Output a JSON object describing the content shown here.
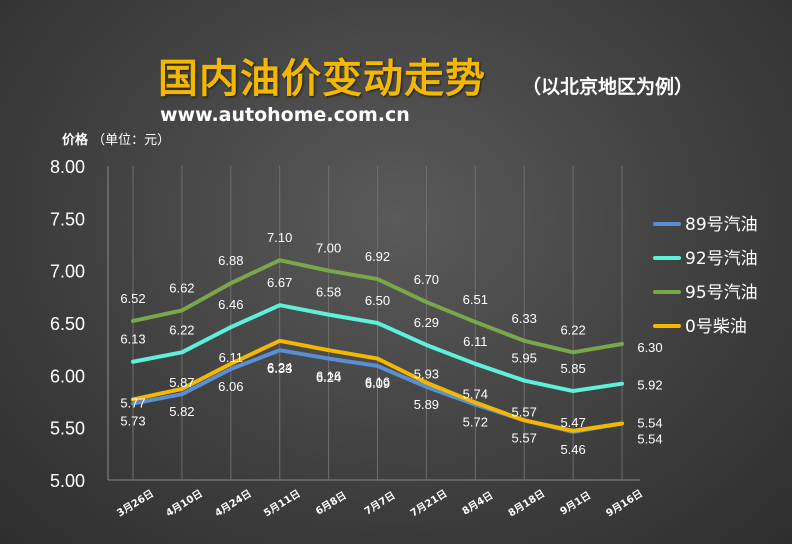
{
  "header": {
    "title": "国内油价变动走势",
    "subtitle": "（以北京地区为例）",
    "url": "www.autohome.com.cn",
    "y_unit_label": "价格",
    "y_unit_note": "（单位：元）"
  },
  "chart_data": {
    "type": "line",
    "categories": [
      "3月26日",
      "4月10日",
      "4月24日",
      "5月11日",
      "6月8日",
      "7月7日",
      "7月21日",
      "8月4日",
      "8月18日",
      "9月1日",
      "9月16日"
    ],
    "ylim": [
      5.0,
      8.0
    ],
    "yticks": [
      "5.00",
      "5.50",
      "6.00",
      "6.50",
      "7.00",
      "7.50",
      "8.00"
    ],
    "grid": "vertical",
    "legend_position": "right",
    "series": [
      {
        "name": "89号汽油",
        "color": "#5b8fd4",
        "values": [
          5.73,
          5.82,
          6.06,
          6.24,
          6.16,
          6.09,
          5.89,
          5.72,
          5.57,
          5.46,
          5.54
        ],
        "labels": [
          "5.73",
          "5.82",
          "6.06",
          "6.24",
          "6.16",
          "6.09",
          "5.89",
          "5.72",
          "5.57",
          "5.46",
          "5.54"
        ]
      },
      {
        "name": "92号汽油",
        "color": "#5ef0d8",
        "values": [
          6.13,
          6.22,
          6.46,
          6.67,
          6.58,
          6.5,
          6.29,
          6.11,
          5.95,
          5.85,
          5.92
        ],
        "labels": [
          "6.13",
          "6.22",
          "6.46",
          "6.67",
          "6.58",
          "6.50",
          "6.29",
          "6.11",
          "5.95",
          "5.85",
          "5.92"
        ]
      },
      {
        "name": "95号汽油",
        "color": "#78a84a",
        "values": [
          6.52,
          6.62,
          6.88,
          7.1,
          7.0,
          6.92,
          6.7,
          6.51,
          6.33,
          6.22,
          6.3
        ],
        "labels": [
          "6.52",
          "6.62",
          "6.88",
          "7.10",
          "7.00",
          "6.92",
          "6.70",
          "6.51",
          "6.33",
          "6.22",
          "6.30"
        ]
      },
      {
        "name": "0号柴油",
        "color": "#f5b800",
        "values": [
          5.77,
          5.87,
          6.11,
          6.33,
          6.24,
          6.16,
          5.93,
          5.74,
          5.57,
          5.47,
          5.54
        ],
        "labels": [
          "5.77",
          "5.87",
          "6.11",
          "6.33",
          "6.24",
          "6.16",
          "5.93",
          "5.74",
          "5.57",
          "5.47",
          "5.54"
        ]
      }
    ]
  }
}
